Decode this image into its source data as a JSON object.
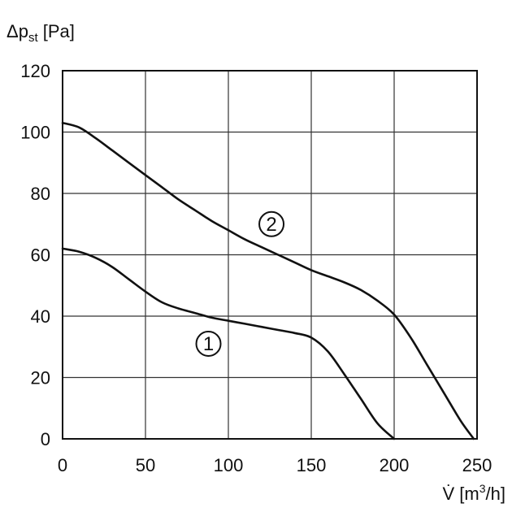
{
  "chart_data": {
    "type": "line",
    "title": "",
    "ylabel": "Δp",
    "ylabel_sub": "st",
    "ylabel_unit": " [Pa]",
    "xlabel": "V̇ [m",
    "xlabel_sup": "3",
    "xlabel_tail": "/h]",
    "xlim": [
      0,
      250
    ],
    "ylim": [
      0,
      120
    ],
    "xticks": [
      0,
      50,
      100,
      150,
      200,
      250
    ],
    "yticks": [
      0,
      20,
      40,
      60,
      80,
      100,
      120
    ],
    "grid": true,
    "series": [
      {
        "name": "1",
        "x": [
          0,
          10,
          20,
          30,
          40,
          50,
          60,
          70,
          80,
          90,
          100,
          110,
          120,
          130,
          140,
          150,
          160,
          170,
          180,
          190,
          200
        ],
        "y": [
          62,
          61,
          59,
          56,
          52,
          48,
          44.5,
          42.5,
          41,
          39.5,
          38.5,
          37.5,
          36.5,
          35.5,
          34.5,
          33,
          28.5,
          21,
          13,
          5,
          0
        ]
      },
      {
        "name": "2",
        "x": [
          0,
          10,
          20,
          30,
          40,
          50,
          60,
          70,
          80,
          90,
          100,
          110,
          120,
          130,
          140,
          150,
          160,
          170,
          180,
          190,
          200,
          210,
          220,
          230,
          240,
          248
        ],
        "y": [
          103,
          101.5,
          98,
          94,
          90,
          86,
          82,
          78,
          74.5,
          71,
          68,
          65,
          62.5,
          60,
          57.5,
          55,
          53,
          51,
          48.5,
          45,
          40.5,
          33,
          24,
          15,
          6,
          0
        ]
      }
    ],
    "annotations": [
      {
        "text": "1",
        "x": 88,
        "y": 31
      },
      {
        "text": "2",
        "x": 126,
        "y": 70
      }
    ]
  }
}
